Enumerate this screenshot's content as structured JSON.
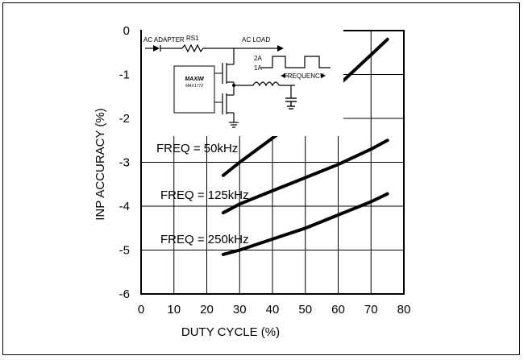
{
  "chart_data": {
    "type": "line",
    "xlabel": "DUTY CYCLE (%)",
    "ylabel": "INP ACCURACY (%)",
    "xlim": [
      0,
      80
    ],
    "ylim": [
      -6,
      0
    ],
    "xticks": [
      0,
      10,
      20,
      30,
      40,
      50,
      60,
      70,
      80
    ],
    "yticks": [
      0,
      -1,
      -2,
      -3,
      -4,
      -5,
      -6
    ],
    "grid": true,
    "series": [
      {
        "name": "FREQ = 50kHz",
        "x": [
          25,
          30,
          40,
          50,
          60,
          70,
          75
        ],
        "y": [
          -3.3,
          -3.0,
          -2.45,
          -1.9,
          -1.25,
          -0.55,
          -0.2
        ]
      },
      {
        "name": "FREQ = 125kHz",
        "x": [
          25,
          30,
          40,
          50,
          60,
          70,
          75
        ],
        "y": [
          -4.15,
          -3.95,
          -3.65,
          -3.35,
          -3.05,
          -2.7,
          -2.5
        ]
      },
      {
        "name": "FREQ = 250kHz",
        "x": [
          25,
          30,
          40,
          50,
          60,
          70,
          75
        ],
        "y": [
          -5.1,
          -5.0,
          -4.75,
          -4.5,
          -4.2,
          -3.9,
          -3.72
        ]
      }
    ],
    "annotations": [
      "FREQ = 50kHz",
      "FREQ = 125kHz",
      "FREQ = 250kHz"
    ]
  },
  "inset": {
    "ac_adapter": "AC ADAPTER",
    "rs1": "RS1",
    "ac_load": "AC LOAD",
    "level_high": "2A",
    "level_low": "1A",
    "frequency": "FREQUENCY",
    "chip_brand": "MAXIM",
    "chip_part": "MAX1772"
  }
}
